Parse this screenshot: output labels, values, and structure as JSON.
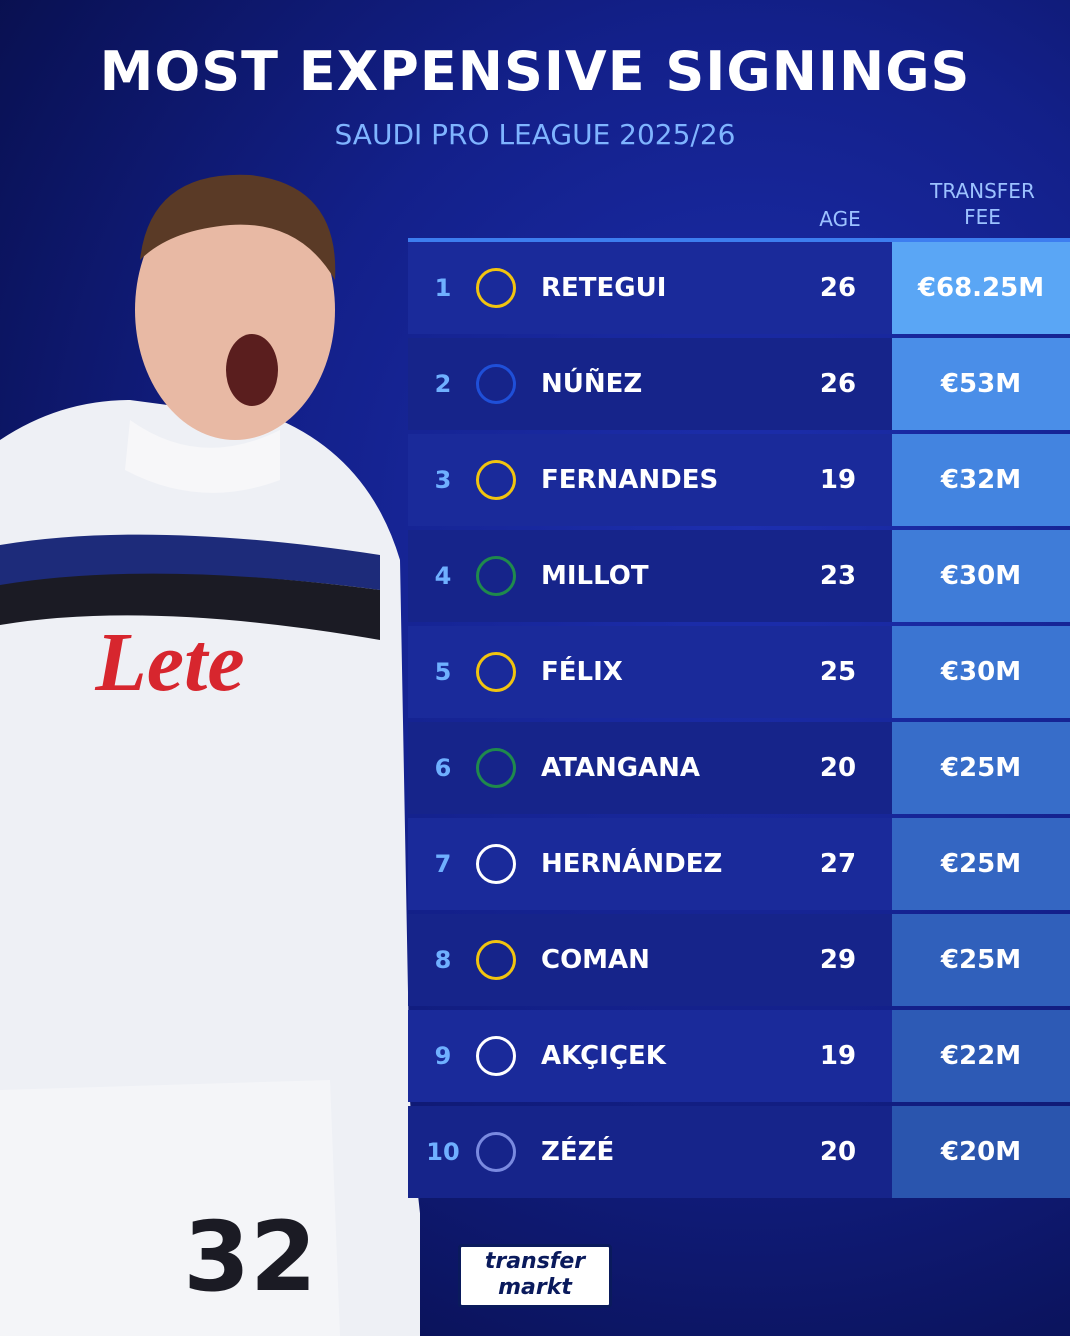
{
  "header": {
    "title": "MOST EXPENSIVE SIGNINGS",
    "subtitle": "SAUDI PRO LEAGUE 2025/26"
  },
  "table": {
    "columns": [
      "AGE",
      "TRANSFER FEE"
    ],
    "rows": [
      {
        "rank": 1,
        "player": "RETEGUI",
        "age": 26,
        "fee": "€68.25M"
      },
      {
        "rank": 2,
        "player": "NÚÑEZ",
        "age": 26,
        "fee": "€53M"
      },
      {
        "rank": 3,
        "player": "FERNANDES",
        "age": 19,
        "fee": "€32M"
      },
      {
        "rank": 4,
        "player": "MILLOT",
        "age": 23,
        "fee": "€30M"
      },
      {
        "rank": 5,
        "player": "FÉLIX",
        "age": 25,
        "fee": "€30M"
      },
      {
        "rank": 6,
        "player": "ATANGANA",
        "age": 20,
        "fee": "€25M"
      },
      {
        "rank": 7,
        "player": "HERNÁNDEZ",
        "age": 27,
        "fee": "€25M"
      },
      {
        "rank": 8,
        "player": "COMAN",
        "age": 29,
        "fee": "€25M"
      },
      {
        "rank": 9,
        "player": "AKÇIÇEK",
        "age": 19,
        "fee": "€22M"
      },
      {
        "rank": 10,
        "player": "ZÉZÉ",
        "age": 20,
        "fee": "€20M"
      }
    ]
  },
  "footer": {
    "logo_top": "transfer",
    "logo_bottom": "markt"
  }
}
